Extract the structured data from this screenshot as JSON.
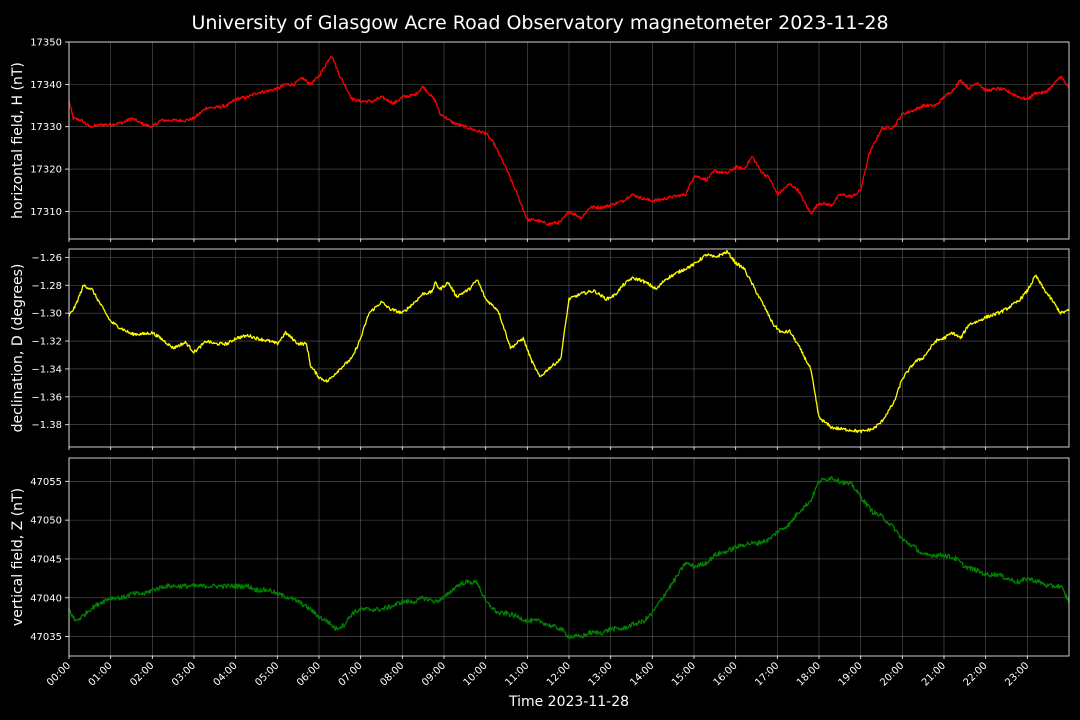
{
  "title": "University of Glasgow Acre Road Observatory magnetometer 2023-11-28",
  "xlabel": "Time 2023-11-28",
  "chart_data": [
    {
      "type": "line",
      "name": "horizontal",
      "ylabel": "horizontal field, H (nT)",
      "color": "#ff0000",
      "ylim": [
        17303.5,
        17350
      ],
      "yticks": [
        17310,
        17320,
        17330,
        17340,
        17350
      ],
      "ytick_labels": [
        "17310",
        "17320",
        "17330",
        "17340",
        "17350"
      ],
      "x_hours": [
        0,
        0.1,
        0.3,
        0.5,
        0.8,
        1.0,
        1.3,
        1.5,
        1.8,
        2.0,
        2.2,
        2.5,
        2.8,
        3.0,
        3.3,
        3.5,
        3.8,
        4.0,
        4.3,
        4.5,
        4.8,
        5.0,
        5.2,
        5.4,
        5.6,
        5.8,
        6.0,
        6.15,
        6.3,
        6.5,
        6.8,
        7.0,
        7.3,
        7.5,
        7.8,
        8.0,
        8.3,
        8.5,
        8.8,
        8.9,
        9.0,
        9.2,
        9.5,
        9.8,
        10.0,
        10.2,
        10.5,
        10.8,
        11.0,
        11.2,
        11.5,
        11.8,
        12.0,
        12.3,
        12.5,
        12.8,
        13.0,
        13.3,
        13.5,
        13.8,
        14.0,
        14.3,
        14.5,
        14.8,
        15.0,
        15.3,
        15.5,
        15.8,
        16.0,
        16.2,
        16.4,
        16.6,
        16.8,
        17.0,
        17.3,
        17.5,
        17.8,
        18.0,
        18.3,
        18.5,
        18.8,
        19.0,
        19.2,
        19.5,
        19.8,
        20.0,
        20.3,
        20.5,
        20.8,
        21.0,
        21.2,
        21.4,
        21.6,
        21.8,
        22.0,
        22.3,
        22.5,
        22.8,
        23.0,
        23.2,
        23.4,
        23.6,
        23.8,
        24.0
      ],
      "values": [
        17336,
        17332,
        17331.5,
        17330,
        17330.5,
        17330.5,
        17331,
        17332,
        17330.5,
        17330,
        17331.5,
        17331.5,
        17331.5,
        17332,
        17334.5,
        17334.5,
        17335,
        17336.5,
        17337,
        17338,
        17338.5,
        17339,
        17340,
        17340,
        17341.5,
        17340,
        17342,
        17344.5,
        17347,
        17342,
        17336.5,
        17336,
        17336,
        17337,
        17335.5,
        17337,
        17337.5,
        17339.5,
        17336,
        17333,
        17332.5,
        17331,
        17330,
        17329,
        17328.5,
        17326,
        17320,
        17313,
        17308,
        17308,
        17307,
        17307.5,
        17310,
        17308.5,
        17311,
        17311,
        17311.5,
        17312.5,
        17314,
        17313,
        17312.5,
        17313,
        17313.5,
        17314,
        17318.5,
        17317.5,
        17319.5,
        17319,
        17320.5,
        17320,
        17323,
        17319.5,
        17318,
        17314,
        17316.5,
        17315,
        17309.5,
        17312,
        17311.5,
        17314,
        17313.5,
        17315,
        17323.5,
        17329.5,
        17330,
        17333,
        17334,
        17335,
        17335,
        17337,
        17338.5,
        17341,
        17339,
        17340.5,
        17338.5,
        17339,
        17338.5,
        17337,
        17336.5,
        17338,
        17338,
        17339.5,
        17342,
        17339
      ]
    },
    {
      "type": "line",
      "name": "declination",
      "ylabel": "declination, D (degrees)",
      "color": "#ffff00",
      "ylim": [
        -1.396,
        -1.254
      ],
      "yticks": [
        -1.38,
        -1.36,
        -1.34,
        -1.32,
        -1.3,
        -1.28,
        -1.26
      ],
      "ytick_labels": [
        "−1.38",
        "−1.36",
        "−1.34",
        "−1.32",
        "−1.30",
        "−1.28",
        "−1.26"
      ],
      "x_hours": [
        0,
        0.15,
        0.35,
        0.55,
        0.8,
        1.0,
        1.2,
        1.5,
        1.8,
        2.0,
        2.2,
        2.5,
        2.8,
        3.0,
        3.3,
        3.5,
        3.8,
        4.0,
        4.3,
        4.5,
        4.8,
        5.0,
        5.2,
        5.5,
        5.7,
        5.8,
        6.0,
        6.2,
        6.5,
        6.8,
        7.0,
        7.2,
        7.5,
        7.7,
        8.0,
        8.3,
        8.5,
        8.7,
        8.8,
        8.9,
        9.1,
        9.3,
        9.6,
        9.8,
        10.0,
        10.3,
        10.6,
        10.9,
        11.1,
        11.3,
        11.5,
        11.8,
        12.0,
        12.3,
        12.6,
        12.9,
        13.1,
        13.3,
        13.5,
        13.7,
        13.9,
        14.1,
        14.3,
        14.6,
        14.8,
        15.0,
        15.3,
        15.5,
        15.8,
        16.0,
        16.2,
        16.5,
        16.7,
        16.9,
        17.1,
        17.3,
        17.5,
        17.8,
        18.0,
        18.3,
        18.5,
        18.8,
        19.0,
        19.3,
        19.5,
        19.8,
        20.0,
        20.3,
        20.5,
        20.8,
        21.0,
        21.2,
        21.4,
        21.6,
        21.8,
        22.0,
        22.3,
        22.5,
        22.8,
        23.0,
        23.2,
        23.4,
        23.6,
        23.8,
        24.0
      ],
      "values": [
        -1.302,
        -1.295,
        -1.28,
        -1.283,
        -1.296,
        -1.306,
        -1.31,
        -1.315,
        -1.315,
        -1.314,
        -1.318,
        -1.325,
        -1.321,
        -1.328,
        -1.32,
        -1.322,
        -1.322,
        -1.318,
        -1.316,
        -1.318,
        -1.32,
        -1.322,
        -1.314,
        -1.322,
        -1.322,
        -1.338,
        -1.346,
        -1.349,
        -1.34,
        -1.332,
        -1.318,
        -1.3,
        -1.292,
        -1.297,
        -1.3,
        -1.292,
        -1.286,
        -1.285,
        -1.278,
        -1.283,
        -1.278,
        -1.288,
        -1.283,
        -1.276,
        -1.29,
        -1.298,
        -1.325,
        -1.318,
        -1.334,
        -1.346,
        -1.34,
        -1.333,
        -1.29,
        -1.286,
        -1.284,
        -1.29,
        -1.287,
        -1.28,
        -1.275,
        -1.276,
        -1.279,
        -1.283,
        -1.276,
        -1.271,
        -1.268,
        -1.265,
        -1.258,
        -1.26,
        -1.256,
        -1.264,
        -1.268,
        -1.285,
        -1.296,
        -1.308,
        -1.314,
        -1.313,
        -1.323,
        -1.34,
        -1.375,
        -1.382,
        -1.383,
        -1.384,
        -1.385,
        -1.383,
        -1.378,
        -1.364,
        -1.347,
        -1.335,
        -1.332,
        -1.32,
        -1.318,
        -1.314,
        -1.318,
        -1.308,
        -1.306,
        -1.303,
        -1.3,
        -1.297,
        -1.291,
        -1.284,
        -1.273,
        -1.283,
        -1.291,
        -1.3,
        -1.298
      ],
      "note": ""
    },
    {
      "type": "line",
      "name": "vertical",
      "ylabel": "vertical field, Z (nT)",
      "color": "#008000",
      "ylim": [
        47032.5,
        47058
      ],
      "yticks": [
        47035,
        47040,
        47045,
        47050,
        47055
      ],
      "ytick_labels": [
        "47035",
        "47040",
        "47045",
        "47050",
        "47055"
      ],
      "x_hours": [
        0,
        0.15,
        0.3,
        0.5,
        0.8,
        1.0,
        1.3,
        1.5,
        1.8,
        2.0,
        2.3,
        2.5,
        2.8,
        3.0,
        3.3,
        3.5,
        3.8,
        4.0,
        4.3,
        4.5,
        4.8,
        5.0,
        5.3,
        5.5,
        5.8,
        6.0,
        6.2,
        6.4,
        6.6,
        6.8,
        7.0,
        7.3,
        7.5,
        7.8,
        8.0,
        8.3,
        8.5,
        8.8,
        9.0,
        9.3,
        9.5,
        9.8,
        10.0,
        10.3,
        10.5,
        10.8,
        11.0,
        11.3,
        11.5,
        11.8,
        12.0,
        12.3,
        12.5,
        12.8,
        13.0,
        13.3,
        13.5,
        13.8,
        14.0,
        14.3,
        14.5,
        14.8,
        15.0,
        15.3,
        15.5,
        15.8,
        16.0,
        16.3,
        16.5,
        16.8,
        17.0,
        17.3,
        17.5,
        17.8,
        18.0,
        18.3,
        18.5,
        18.8,
        19.0,
        19.3,
        19.5,
        19.8,
        20.0,
        20.3,
        20.5,
        20.8,
        21.0,
        21.3,
        21.5,
        21.8,
        22.0,
        22.3,
        22.5,
        22.8,
        23.0,
        23.3,
        23.5,
        23.8,
        24.0
      ],
      "values": [
        47038.5,
        47037,
        47037.5,
        47038.5,
        47039.5,
        47040,
        47040,
        47040.5,
        47040.5,
        47041,
        47041.5,
        47041.5,
        47041.5,
        47041.5,
        47041.5,
        47041.5,
        47041.5,
        47041.5,
        47041.5,
        47041,
        47041,
        47040.5,
        47040,
        47039.5,
        47038.5,
        47037.5,
        47037,
        47036,
        47036.5,
        47038,
        47038.5,
        47038.5,
        47038.5,
        47039,
        47039.5,
        47039.5,
        47040,
        47039.5,
        47040,
        47041.5,
        47042,
        47042,
        47039.5,
        47038,
        47038,
        47037.5,
        47037,
        47037,
        47036.5,
        47036,
        47035,
        47035,
        47035.5,
        47035.5,
        47036,
        47036,
        47036.5,
        47037,
        47038,
        47040.5,
        47042,
        47044.5,
        47044,
        47044.5,
        47045.5,
        47046,
        47046.5,
        47047,
        47047,
        47047.5,
        47048.5,
        47049.5,
        47051,
        47052.5,
        47055,
        47055.5,
        47055,
        47054.5,
        47053,
        47051,
        47050.5,
        47049,
        47047.5,
        47046.5,
        47045.5,
        47045.5,
        47045.5,
        47045,
        47044,
        47043.5,
        47043,
        47043,
        47042.5,
        47042,
        47042.5,
        47042,
        47041.5,
        47041.5,
        47039.5
      ],
      "note": ""
    }
  ],
  "x_axis": {
    "range_hours": [
      0,
      24
    ],
    "tick_labels": [
      "00:00",
      "01:00",
      "02:00",
      "03:00",
      "04:00",
      "05:00",
      "06:00",
      "07:00",
      "08:00",
      "09:00",
      "10:00",
      "11:00",
      "12:00",
      "13:00",
      "14:00",
      "15:00",
      "16:00",
      "17:00",
      "18:00",
      "19:00",
      "20:00",
      "21:00",
      "22:00",
      "23:00"
    ]
  }
}
